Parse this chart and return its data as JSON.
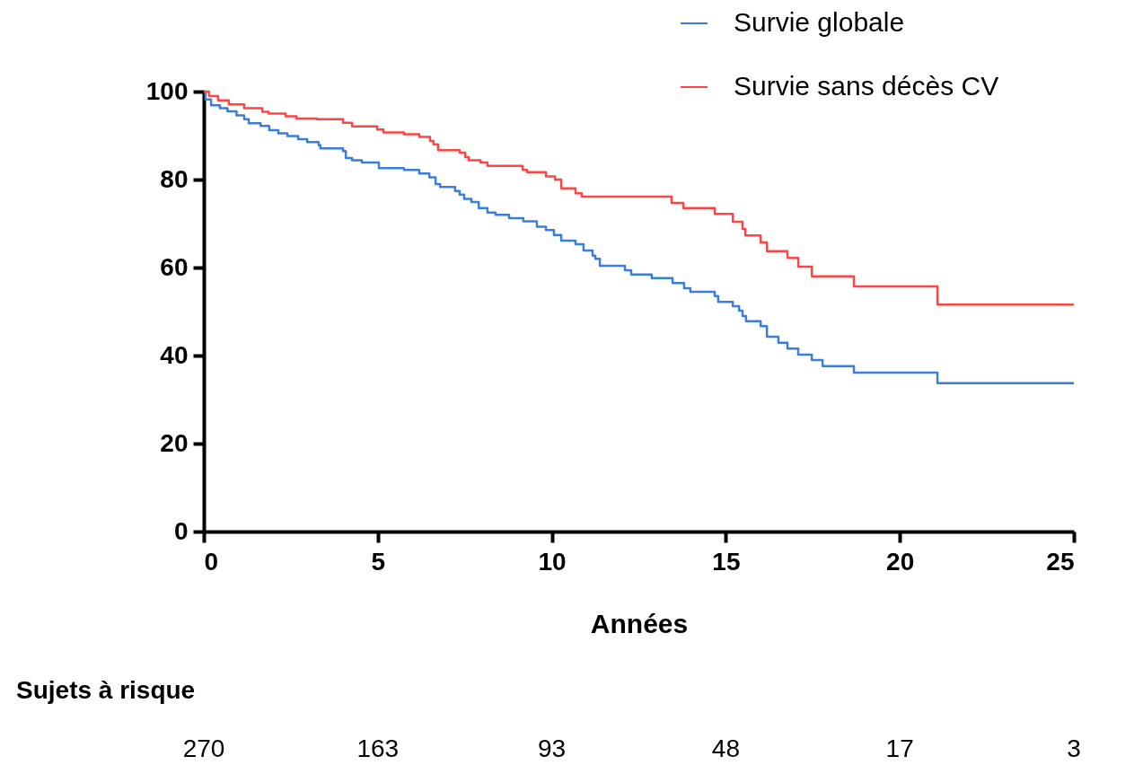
{
  "chart_data": {
    "type": "step",
    "xlabel": "Années",
    "xlim": [
      0,
      25
    ],
    "xticks": [
      0,
      5,
      10,
      15,
      20,
      25
    ],
    "ylim": [
      0,
      100
    ],
    "yticks": [
      0,
      20,
      40,
      60,
      80,
      100
    ],
    "grid": false,
    "legend": "top right",
    "marker": "none",
    "line_style": "solid",
    "series": [
      {
        "name": "Survie globale",
        "color": "#3b7dd8",
        "x": [
          0,
          0.05,
          0.21,
          0.46,
          0.68,
          0.94,
          1.16,
          1.29,
          1.63,
          1.88,
          2.14,
          2.4,
          2.71,
          2.97,
          3.3,
          3.35,
          4.0,
          4.08,
          4.26,
          4.54,
          5.03,
          5.75,
          6.19,
          6.48,
          6.66,
          6.79,
          7.22,
          7.35,
          7.48,
          7.69,
          7.9,
          8.15,
          8.38,
          8.77,
          9.18,
          9.57,
          9.83,
          10.06,
          10.27,
          10.68,
          10.91,
          11.17,
          11.25,
          11.38,
          12.1,
          12.28,
          12.87,
          13.47,
          13.8,
          13.98,
          14.68,
          14.78,
          15.2,
          15.38,
          15.48,
          15.58,
          16.0,
          16.18,
          16.51,
          16.77,
          17.08,
          17.47,
          17.78,
          18.68,
          21.08,
          25
        ],
        "values": [
          100,
          98.2,
          96.9,
          96.2,
          95.5,
          94.6,
          93.7,
          92.8,
          92.2,
          91.2,
          90.5,
          89.9,
          89.2,
          88.5,
          87.8,
          87.1,
          86.5,
          84.9,
          84.4,
          83.9,
          82.6,
          82.2,
          81.4,
          80.5,
          79,
          78.3,
          77.4,
          76.6,
          75.6,
          74.9,
          73.5,
          72.5,
          72,
          71.2,
          70.5,
          69.3,
          68.5,
          67.4,
          66.1,
          65.3,
          63.9,
          62.7,
          62,
          60.4,
          59.4,
          58.4,
          57.6,
          56.5,
          55.3,
          54.5,
          53.5,
          52.2,
          51.2,
          50.2,
          49,
          47.8,
          46.7,
          44.3,
          42.9,
          41.6,
          40.2,
          39,
          37.6,
          36.1,
          33.7,
          33.7
        ]
      },
      {
        "name": "Survie sans décès CV",
        "color": "#ff4444",
        "x": [
          0,
          0.15,
          0.41,
          0.72,
          1.16,
          1.68,
          1.86,
          2.35,
          2.66,
          3.25,
          4.0,
          4.26,
          4.98,
          5.16,
          5.75,
          6.19,
          6.5,
          6.6,
          6.73,
          7.35,
          7.51,
          7.61,
          7.95,
          8.15,
          9.16,
          9.29,
          9.83,
          10.09,
          10.27,
          10.68,
          10.86,
          13.44,
          13.78,
          14.68,
          15.2,
          15.48,
          15.56,
          16.0,
          16.18,
          16.77,
          17.08,
          17.47,
          18.68,
          21.08,
          25
        ],
        "values": [
          100,
          99,
          98,
          97.1,
          96.2,
          95.4,
          95,
          94.4,
          93.9,
          93.7,
          92.9,
          92.1,
          91.4,
          90.7,
          90.3,
          89.7,
          88.8,
          88,
          86.7,
          86.1,
          85.1,
          84.4,
          83.9,
          83.1,
          82.2,
          81.7,
          80.7,
          80,
          78,
          76.9,
          76.1,
          74.7,
          73.5,
          72.2,
          70.4,
          68.8,
          67.3,
          65.7,
          63.7,
          62.2,
          60.2,
          58,
          55.7,
          51.6,
          51.6
        ]
      }
    ],
    "annotations": [
      "Sujets à risque",
      "270",
      "163",
      "93",
      "48",
      "17",
      "3"
    ]
  }
}
